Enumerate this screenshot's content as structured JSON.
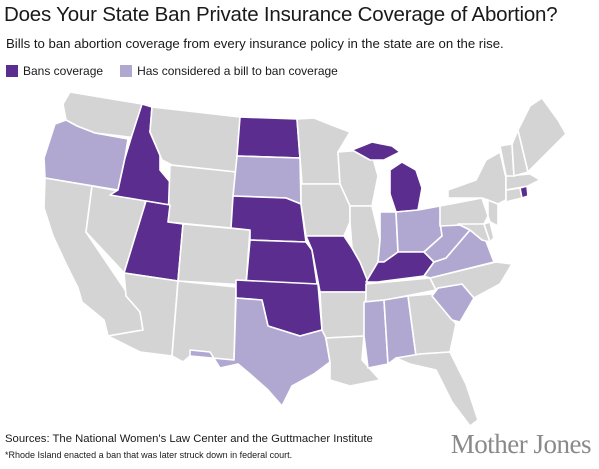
{
  "title": "Does Your State Ban Private Insurance Coverage of Abortion?",
  "subtitle": "Bills to ban abortion coverage from every insurance policy in the state are on the rise.",
  "legend": {
    "bans_label": "Bans coverage",
    "considered_label": "Has considered a bill to ban coverage"
  },
  "colors": {
    "bans": "#5b2d8e",
    "considered": "#b1a8d1",
    "none": "#d4d4d4"
  },
  "states": {
    "bans": [
      "ID",
      "UT",
      "ND",
      "NE",
      "KS",
      "OK",
      "MO",
      "KY",
      "MI",
      "RI"
    ],
    "considered": [
      "OR",
      "SD",
      "TX",
      "MS",
      "AL",
      "SC",
      "IN",
      "OH",
      "WV",
      "VA"
    ]
  },
  "footer": {
    "sources": "Sources: The National Women's Law Center and the Guttmacher Institute",
    "footnote": "*Rhode Island enacted a ban that was later struck down in federal court.",
    "brand": "Mother Jones"
  }
}
